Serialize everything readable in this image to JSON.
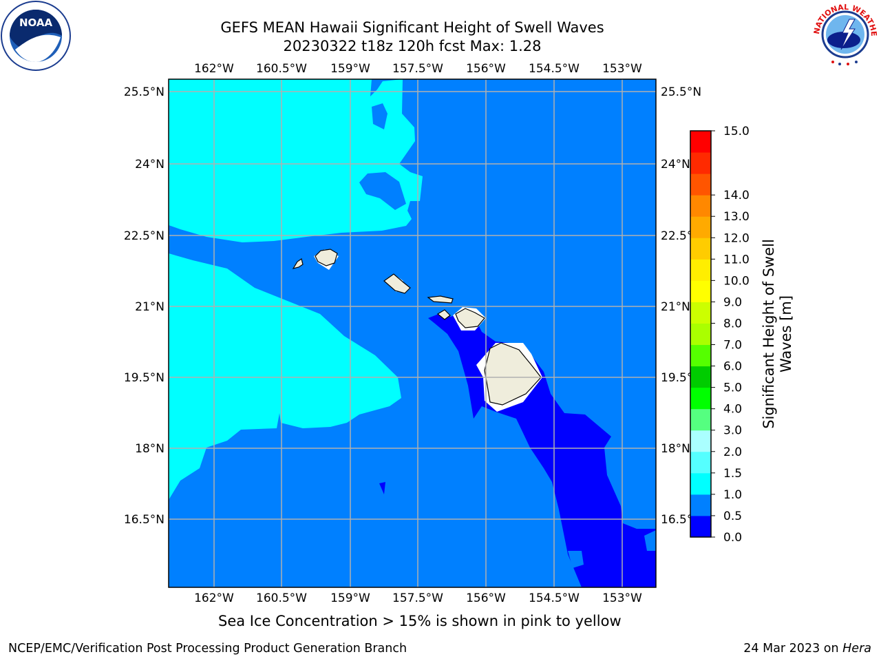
{
  "title_line1": "GEFS MEAN Hawaii Significant Height of Swell Waves",
  "title_line2": "20230322 t18z 120h fcst   Max: 1.28",
  "lon_labels": [
    "162°W",
    "160.5°W",
    "159°W",
    "157.5°W",
    "156°W",
    "154.5°W",
    "153°W"
  ],
  "lat_labels": [
    "25.5°N",
    "24°N",
    "22.5°N",
    "21°N",
    "19.5°N",
    "18°N",
    "16.5°N"
  ],
  "colorbar": {
    "label_line1": "Significant Height of Swell",
    "label_line2": "Waves [m]",
    "tick_labels": [
      "0.0",
      "0.5",
      "1.0",
      "1.5",
      "2.0",
      "3.0",
      "4.0",
      "5.0",
      "6.0",
      "7.0",
      "8.0",
      "9.0",
      "10.0",
      "11.0",
      "12.0",
      "13.0",
      "14.0",
      "15.0"
    ],
    "colors": [
      "#0000ff",
      "#0080ff",
      "#00ffff",
      "#55ffff",
      "#aaffff",
      "#55ff80",
      "#00ff00",
      "#00cc00",
      "#55ff00",
      "#aaff00",
      "#ccff00",
      "#ffff00",
      "#ffee00",
      "#ffcc00",
      "#ffaa00",
      "#ff8800",
      "#ff5500",
      "#ff2a00",
      "#ff0000"
    ]
  },
  "map_colors": {
    "swell_0_0.5": "#0000ff",
    "swell_0.5_1.0": "#0080ff",
    "swell_1.0_1.5": "#00ffff",
    "land": "#efeddc",
    "grid": "#b0b0b0"
  },
  "subtitle": "Sea Ice Concentration > 15% is shown in pink to yellow",
  "footer_left": "NCEP/EMC/Verification Post Processing Product Generation Branch",
  "footer_right_prefix": "24 Mar 2023 on ",
  "footer_right_host": "Hera",
  "logos": {
    "left": "NOAA",
    "right": "NATIONAL WEATHER SERVICE"
  }
}
